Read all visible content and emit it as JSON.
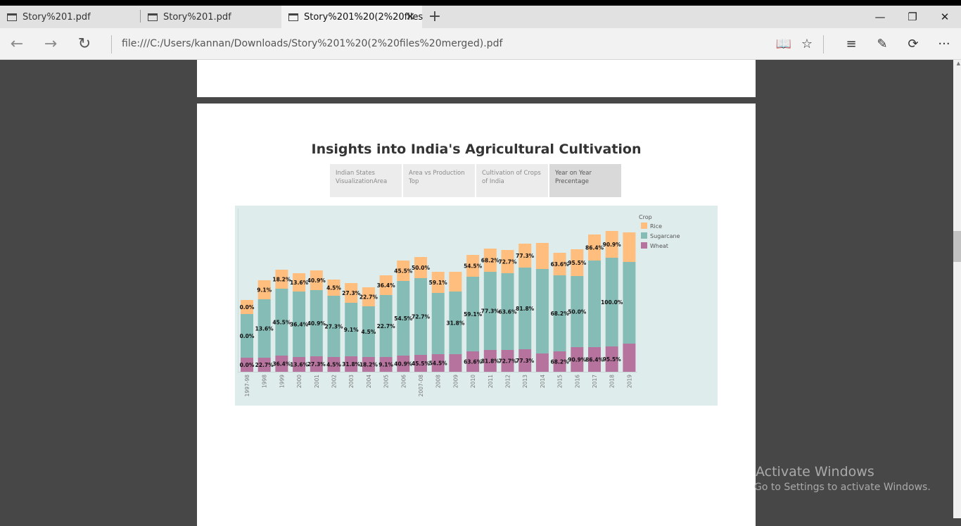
{
  "browser": {
    "tabs": [
      {
        "label": "Story%201.pdf"
      },
      {
        "label": "Story%201.pdf"
      },
      {
        "label": "Story%201%20(2%20files"
      }
    ],
    "address": "file:///C:/Users/kannan/Downloads/Story%201%20(2%20files%20merged).pdf"
  },
  "story": {
    "title": "Insights into India's Agricultural Cultivation",
    "tabs": [
      {
        "label": "Indian States VisualizationArea"
      },
      {
        "label": "Area vs Production Top"
      },
      {
        "label": "Cultivation of Crops of India"
      },
      {
        "label": "Year on Year Precentage"
      }
    ]
  },
  "chart_data": {
    "type": "bar",
    "stacked": true,
    "categories": [
      "1997-98",
      "1998",
      "1999",
      "2000",
      "2001",
      "2002",
      "2003",
      "2004",
      "2005",
      "2006",
      "2007-08",
      "2008",
      "2009",
      "2010",
      "2011",
      "2012",
      "2013",
      "2014",
      "2015",
      "2016",
      "2017",
      "2018",
      "2019"
    ],
    "legend_title": "Crop",
    "legend_position": "right",
    "series": [
      {
        "name": "Wheat",
        "color": "#b5739d",
        "values": [
          20,
          20,
          23,
          21,
          22,
          21,
          22,
          21,
          21,
          23,
          24,
          25,
          25,
          29,
          31,
          31,
          32,
          26,
          29,
          35,
          35,
          36,
          40
        ],
        "labels": [
          "0.0%",
          "22.7%",
          "36.4%",
          "13.6%",
          "27.3%",
          "4.5%",
          "31.8%",
          "18.2%",
          "9.1%",
          "40.9%",
          "45.5%",
          "54.5%",
          "",
          "63.6%",
          "81.8%",
          "72.7%",
          "77.3%",
          "",
          "68.2%",
          "90.9%",
          "86.4%",
          "95.5%",
          ""
        ]
      },
      {
        "name": "Sugarcane",
        "color": "#86bcb6",
        "values": [
          62,
          83,
          95,
          93,
          94,
          87,
          76,
          72,
          88,
          106,
          109,
          87,
          89,
          106,
          111,
          109,
          116,
          120,
          108,
          101,
          123,
          126,
          116
        ],
        "labels": [
          "0.0%",
          "13.6%",
          "45.5%",
          "36.4%",
          "40.9%",
          "27.3%",
          "9.1%",
          "4.5%",
          "22.7%",
          "54.5%",
          "72.7%",
          "",
          "31.8%",
          "59.1%",
          "77.3%",
          "63.6%",
          "81.8%",
          "",
          "68.2%",
          "50.0%",
          "",
          "100.0%",
          ""
        ]
      },
      {
        "name": "Rice",
        "color": "#ffbe7d",
        "values": [
          20,
          27,
          27,
          26,
          28,
          23,
          28,
          27,
          28,
          29,
          30,
          30,
          28,
          31,
          33,
          33,
          34,
          37,
          32,
          38,
          37,
          38,
          42
        ],
        "labels": [
          "0.0%",
          "9.1%",
          "18.2%",
          "13.6%",
          "40.9%",
          "4.5%",
          "27.3%",
          "22.7%",
          "36.4%",
          "45.5%",
          "50.0%",
          "59.1%",
          "",
          "54.5%",
          "68.2%",
          "72.7%",
          "77.3%",
          "",
          "63.6%",
          "95.5%",
          "86.4%",
          "90.9%",
          ""
        ]
      }
    ]
  },
  "watermark": {
    "line1": "Activate Windows",
    "line2": "Go to Settings to activate Windows."
  }
}
